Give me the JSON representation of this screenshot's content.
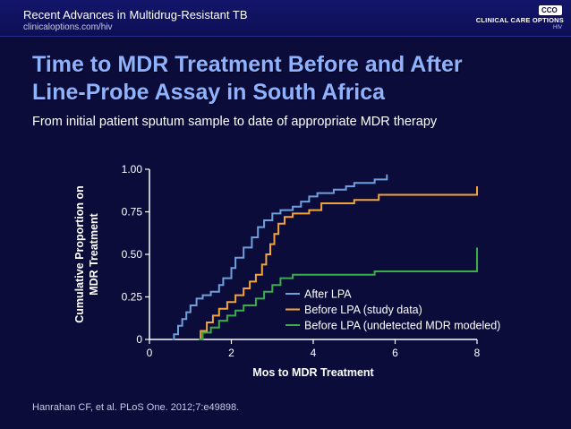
{
  "header": {
    "course_title": "Recent Advances in Multidrug-Resistant TB",
    "url": "clinicaloptions.com/hiv",
    "brand": "CLINICAL CARE OPTIONS",
    "brand_sub": "HIV",
    "badge": "CCO"
  },
  "slide": {
    "title_line1": "Time to MDR Treatment Before and After",
    "title_line2": "Line-Probe Assay in South Africa",
    "subtitle": "From initial patient sputum sample to date of appropriate MDR therapy",
    "citation": "Hanrahan CF, et al. PLoS One. 2012;7:e49898."
  },
  "colors": {
    "after_lpa": "#6fa0dc",
    "before_lpa": "#f2a33a",
    "undetected": "#3aad4a",
    "title": "#8fb2ff"
  },
  "chart_data": {
    "type": "line",
    "xlabel": "Mos to MDR Treatment",
    "ylabel_line1": "Cumulative Proportion on",
    "ylabel_line2": "MDR Treatment",
    "xlim": [
      0,
      8
    ],
    "ylim": [
      0,
      1
    ],
    "x_ticks": [
      0,
      2,
      4,
      6,
      8
    ],
    "x_tick_labels": [
      "0",
      "2",
      "4",
      "6",
      "8"
    ],
    "y_ticks": [
      0,
      0.25,
      0.5,
      0.75,
      1.0
    ],
    "y_tick_labels": [
      "0",
      "0.25",
      "0.50",
      "0.75",
      "1.00"
    ],
    "legend_position": "bottom-right",
    "series": [
      {
        "name": "After LPA",
        "color": "#6fa0dc",
        "points": [
          [
            0.55,
            0
          ],
          [
            0.6,
            0.03
          ],
          [
            0.7,
            0.08
          ],
          [
            0.8,
            0.12
          ],
          [
            0.9,
            0.16
          ],
          [
            1.0,
            0.2
          ],
          [
            1.15,
            0.24
          ],
          [
            1.3,
            0.26
          ],
          [
            1.5,
            0.28
          ],
          [
            1.7,
            0.32
          ],
          [
            1.8,
            0.36
          ],
          [
            2.0,
            0.42
          ],
          [
            2.1,
            0.48
          ],
          [
            2.3,
            0.54
          ],
          [
            2.5,
            0.6
          ],
          [
            2.65,
            0.66
          ],
          [
            2.8,
            0.7
          ],
          [
            3.0,
            0.74
          ],
          [
            3.2,
            0.76
          ],
          [
            3.5,
            0.78
          ],
          [
            3.7,
            0.81
          ],
          [
            3.9,
            0.84
          ],
          [
            4.1,
            0.86
          ],
          [
            4.5,
            0.88
          ],
          [
            4.8,
            0.9
          ],
          [
            5.0,
            0.92
          ],
          [
            5.5,
            0.94
          ],
          [
            5.8,
            0.97
          ]
        ]
      },
      {
        "name": "Before LPA (study data)",
        "color": "#f2a33a",
        "points": [
          [
            1.2,
            0
          ],
          [
            1.25,
            0.05
          ],
          [
            1.4,
            0.1
          ],
          [
            1.55,
            0.14
          ],
          [
            1.7,
            0.18
          ],
          [
            1.9,
            0.22
          ],
          [
            2.1,
            0.26
          ],
          [
            2.3,
            0.3
          ],
          [
            2.45,
            0.34
          ],
          [
            2.6,
            0.38
          ],
          [
            2.75,
            0.44
          ],
          [
            2.85,
            0.5
          ],
          [
            2.95,
            0.56
          ],
          [
            3.05,
            0.62
          ],
          [
            3.15,
            0.68
          ],
          [
            3.3,
            0.72
          ],
          [
            3.5,
            0.74
          ],
          [
            3.9,
            0.76
          ],
          [
            4.2,
            0.8
          ],
          [
            5.0,
            0.82
          ],
          [
            5.6,
            0.85
          ],
          [
            8.0,
            0.86
          ],
          [
            8.0,
            0.9
          ]
        ]
      },
      {
        "name": "Before LPA (undetected MDR modeled)",
        "color": "#3aad4a",
        "points": [
          [
            1.2,
            0
          ],
          [
            1.3,
            0.04
          ],
          [
            1.5,
            0.07
          ],
          [
            1.7,
            0.11
          ],
          [
            1.9,
            0.14
          ],
          [
            2.1,
            0.17
          ],
          [
            2.3,
            0.2
          ],
          [
            2.6,
            0.24
          ],
          [
            2.8,
            0.28
          ],
          [
            3.0,
            0.32
          ],
          [
            3.2,
            0.36
          ],
          [
            3.5,
            0.38
          ],
          [
            4.5,
            0.38
          ],
          [
            5.5,
            0.4
          ],
          [
            8.0,
            0.41
          ],
          [
            8.0,
            0.54
          ]
        ]
      }
    ]
  }
}
